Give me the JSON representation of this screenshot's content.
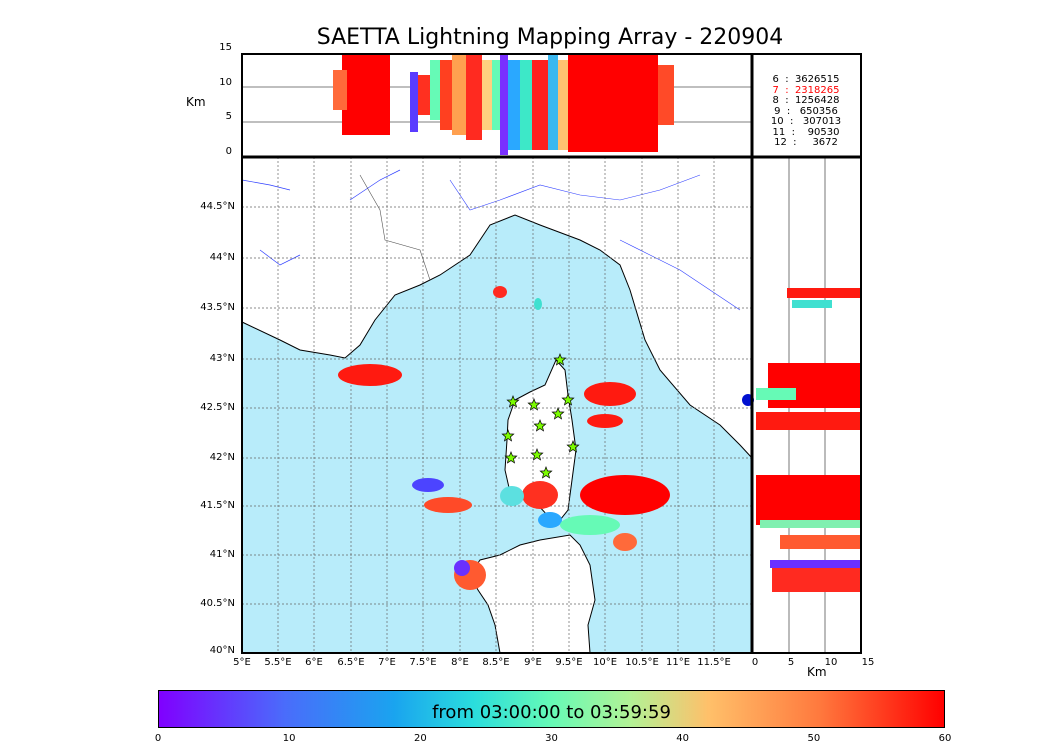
{
  "title": "SAETTA Lightning Mapping Array - 220904",
  "top_panel": {
    "y_label": "Km",
    "y_ticks": [
      "15",
      "10",
      "5",
      "0"
    ]
  },
  "stats": [
    {
      "label": "6  :  3626515",
      "color": "#000000"
    },
    {
      "label": "7  :  2318265",
      "color": "#ff0000"
    },
    {
      "label": "8  :  1256428",
      "color": "#000000"
    },
    {
      "label": "9  :   650356",
      "color": "#000000"
    },
    {
      "label": "10  :   307013",
      "color": "#000000"
    },
    {
      "label": "11  :    90530",
      "color": "#000000"
    },
    {
      "label": "12  :     3672",
      "color": "#000000"
    }
  ],
  "map": {
    "lat_ticks": [
      "44.5°N",
      "44°N",
      "43.5°N",
      "43°N",
      "42.5°N",
      "42°N",
      "41.5°N",
      "41°N",
      "40.5°N",
      "40°N"
    ],
    "lon_ticks": [
      "5°E",
      "5.5°E",
      "6°E",
      "6.5°E",
      "7°E",
      "7.5°E",
      "8°E",
      "8.5°E",
      "9°E",
      "9.5°E",
      "10°E",
      "10.5°E",
      "11°E",
      "11.5°E"
    ],
    "sea_color": "#b8ecfa",
    "station_color": "#7cfc00"
  },
  "right_panel": {
    "x_label": "Km",
    "x_ticks": [
      "0",
      "5",
      "10",
      "15"
    ]
  },
  "colorbar": {
    "label": "from 03:00:00 to 03:59:59",
    "ticks": [
      "0",
      "10",
      "20",
      "30",
      "40",
      "50",
      "60"
    ]
  }
}
